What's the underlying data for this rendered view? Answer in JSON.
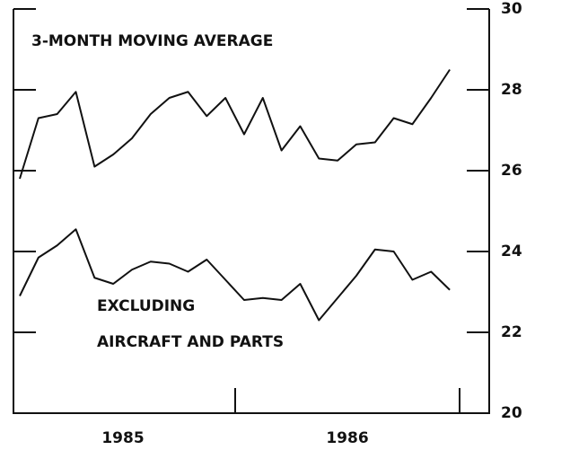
{
  "chart_data": {
    "type": "line",
    "title": "3-MONTH MOVING AVERAGE",
    "annotations": [
      "EXCLUDING",
      "AIRCRAFT AND PARTS"
    ],
    "categories": [
      null,
      null,
      null,
      null,
      null,
      null,
      null,
      null,
      null,
      null,
      null,
      null,
      null,
      null,
      null,
      null,
      null,
      null,
      null,
      null,
      null,
      null,
      null,
      null
    ],
    "year_labels": [
      "1985",
      "1986"
    ],
    "series": [
      {
        "color": "#111111",
        "values": [
          25.8,
          27.3,
          27.4,
          27.95,
          26.1,
          26.4,
          26.8,
          27.4,
          27.8,
          27.95,
          27.35,
          27.8,
          26.9,
          27.8,
          26.5,
          27.1,
          26.3,
          26.25,
          26.65,
          26.7,
          27.3,
          27.15,
          27.8,
          28.5
        ]
      },
      {
        "color": "#111111",
        "values": [
          22.9,
          23.85,
          24.15,
          24.55,
          23.35,
          23.2,
          23.55,
          23.75,
          23.7,
          23.5,
          23.8,
          23.3,
          22.8,
          22.85,
          22.8,
          23.2,
          22.3,
          22.85,
          23.4,
          24.05,
          24.0,
          23.3,
          23.5,
          23.05
        ]
      }
    ],
    "ylim": [
      20,
      30
    ],
    "yticks": [
      20,
      22,
      24,
      26,
      28,
      30
    ],
    "y_axis_side": "right"
  }
}
